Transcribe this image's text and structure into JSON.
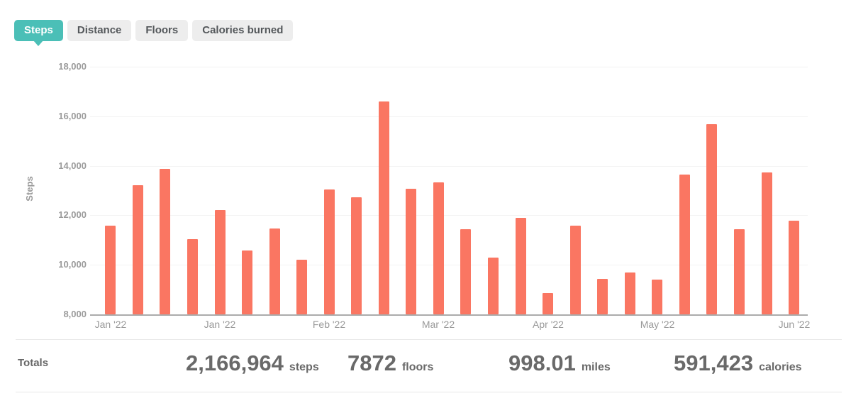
{
  "tabs": [
    {
      "label": "Steps",
      "active": true
    },
    {
      "label": "Distance",
      "active": false
    },
    {
      "label": "Floors",
      "active": false
    },
    {
      "label": "Calories burned",
      "active": false
    }
  ],
  "chart_data": {
    "type": "bar",
    "title": "",
    "xlabel": "",
    "ylabel": "Steps",
    "ylim": [
      8000,
      18000
    ],
    "grid": true,
    "legend": "none",
    "bar_color": "#FA7662",
    "y_ticks": [
      8000,
      10000,
      12000,
      14000,
      16000,
      18000
    ],
    "y_tick_labels": [
      "8,000",
      "10,000",
      "12,000",
      "14,000",
      "16,000",
      "18,000"
    ],
    "values": [
      11580,
      13215,
      13875,
      11035,
      12210,
      10580,
      11465,
      10205,
      13045,
      12730,
      16590,
      13070,
      13330,
      11440,
      10290,
      11895,
      8860,
      11580,
      9430,
      9690,
      9400,
      13645,
      15680,
      11440,
      13720,
      11780
    ],
    "x_tick_marks": [
      {
        "label": "Jan '22",
        "bar_index": 0
      },
      {
        "label": "Jan '22",
        "bar_index": 4
      },
      {
        "label": "Feb '22",
        "bar_index": 8
      },
      {
        "label": "Mar '22",
        "bar_index": 12
      },
      {
        "label": "Apr '22",
        "bar_index": 16
      },
      {
        "label": "May '22",
        "bar_index": 20
      },
      {
        "label": "Jun '22",
        "bar_index": 25
      }
    ]
  },
  "totals": {
    "label": "Totals",
    "stats": [
      {
        "value": "2,166,964",
        "unit": "steps"
      },
      {
        "value": "7872",
        "unit": "floors"
      },
      {
        "value": "998.01",
        "unit": "miles"
      },
      {
        "value": "591,423",
        "unit": "calories"
      }
    ]
  },
  "colors": {
    "accent": "#4BBFB7",
    "bar": "#FA7662",
    "inactive_tab_bg": "#EDEDED",
    "grid_line": "#F3F3F3",
    "axis_line": "#ABABAB",
    "tick_text": "#999999",
    "totals_text": "#666666"
  }
}
